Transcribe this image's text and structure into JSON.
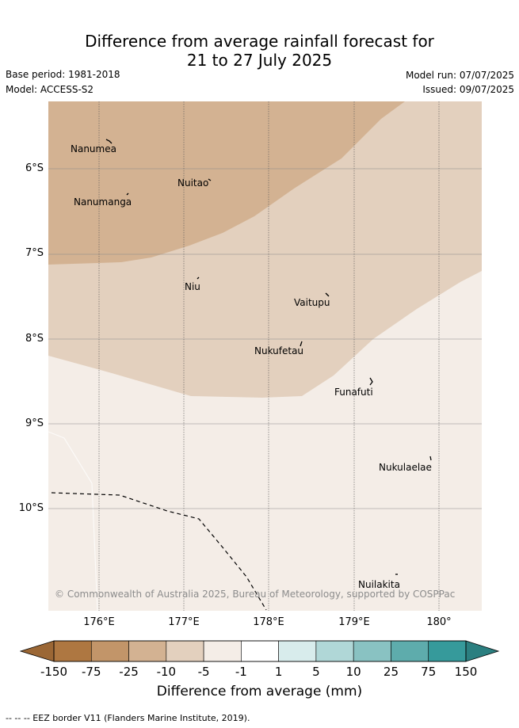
{
  "title_line1": "Difference from average rainfall forecast for",
  "title_line2": "21 to 27 July 2025",
  "base_period": "Base period: 1981-2018",
  "model": "Model: ACCESS-S2",
  "model_run": "Model run: 07/07/2025",
  "issued": "Issued: 09/07/2025",
  "lat_ticks": [
    "6°S",
    "7°S",
    "8°S",
    "9°S",
    "10°S"
  ],
  "lon_ticks": [
    "176°E",
    "177°E",
    "178°E",
    "179°E",
    "180°"
  ],
  "places": [
    {
      "name": "Nanumea"
    },
    {
      "name": "Nuitao"
    },
    {
      "name": "Nanumanga"
    },
    {
      "name": "Niu"
    },
    {
      "name": "Vaitupu"
    },
    {
      "name": "Nukufetau"
    },
    {
      "name": "Funafuti"
    },
    {
      "name": "Nukulaelae"
    },
    {
      "name": "Nuilakita"
    }
  ],
  "copyright": "© Commonwealth of Australia 2025, Bureau of Meteorology, supported by COSPPac",
  "colorbar": {
    "labels": [
      "-150",
      "-75",
      "-25",
      "-10",
      "-5",
      "-1",
      "1",
      "5",
      "10",
      "25",
      "75",
      "150"
    ],
    "colors": [
      "#ae7741",
      "#c29569",
      "#d3b292",
      "#e3d0be",
      "#f4ede7",
      "#ffffff",
      "#d8ecec",
      "#b0d7d7",
      "#89c2c2",
      "#5eacac",
      "#369a9b"
    ],
    "under_color": "#9b6735",
    "over_color": "#2b7f80",
    "title": "Difference from average (mm)"
  },
  "legend_eez": "-- -- -- EEZ border V11 (Flanders Marine Institute, 2019).",
  "map_colors": {
    "dark": "#d3b292",
    "medium": "#e3d0be",
    "light": "#f4ede7"
  }
}
